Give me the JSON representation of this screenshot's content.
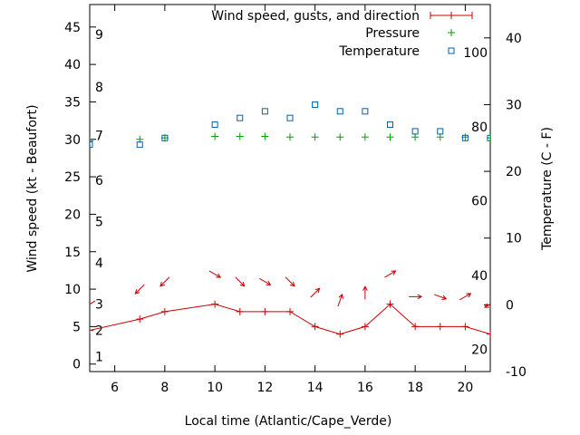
{
  "chart_data": {
    "type": "line",
    "xlabel": "Local time (Atlantic/Cape_Verde)",
    "ylabel_left": "Wind speed (kt - Beaufort)",
    "ylabel_right": "Temperature (C - F)",
    "xlim": [
      5,
      21
    ],
    "ylim_left": [
      -1,
      48
    ],
    "ylim_right": [
      -10,
      45
    ],
    "x_ticks": [
      6,
      8,
      10,
      12,
      14,
      16,
      18,
      20
    ],
    "y_ticks_left": [
      0,
      5,
      10,
      15,
      20,
      25,
      30,
      35,
      40,
      45
    ],
    "y_ticks_right": [
      -10,
      0,
      10,
      20,
      30,
      40
    ],
    "grid": false,
    "legend_position": "top-right",
    "beaufort_labels": [
      {
        "label": "1",
        "kt": 1
      },
      {
        "label": "2",
        "kt": 4.5
      },
      {
        "label": "3",
        "kt": 8
      },
      {
        "label": "4",
        "kt": 13.5
      },
      {
        "label": "5",
        "kt": 19
      },
      {
        "label": "6",
        "kt": 24.5
      },
      {
        "label": "7",
        "kt": 30.5
      },
      {
        "label": "8",
        "kt": 37
      },
      {
        "label": "9",
        "kt": 44
      }
    ],
    "fahrenheit_labels": [
      {
        "label": "20",
        "celsius": -6.7
      },
      {
        "label": "40",
        "celsius": 4.4
      },
      {
        "label": "60",
        "celsius": 15.6
      },
      {
        "label": "80",
        "celsius": 26.7
      },
      {
        "label": "100",
        "celsius": 37.8
      }
    ],
    "series": [
      {
        "name": "Wind speed, gusts, and direction",
        "color": "#cc0000",
        "marker": "plus",
        "x": [
          5,
          7,
          8,
          10,
          11,
          12,
          13,
          14,
          15,
          16,
          17,
          18,
          19,
          20,
          21
        ],
        "values": [
          4.5,
          6,
          7,
          8,
          7,
          7,
          7,
          5,
          4,
          5,
          8,
          5,
          5,
          5,
          4
        ],
        "direction_deg": [
          60,
          45,
          45,
          300,
          315,
          300,
          315,
          225,
          200,
          180,
          240,
          270,
          290,
          240,
          60
        ],
        "arrow_y": [
          8,
          10,
          11,
          12,
          11,
          11,
          11,
          9.5,
          8.5,
          9.5,
          12,
          9,
          9,
          9,
          8
        ]
      },
      {
        "name": "Pressure",
        "color": "#00a000",
        "marker": "plus",
        "x": [
          5,
          7,
          8,
          10,
          11,
          12,
          13,
          14,
          15,
          16,
          17,
          18,
          19,
          20,
          21
        ],
        "values": [
          29.8,
          30,
          30.2,
          30.4,
          30.4,
          30.4,
          30.3,
          30.3,
          30.3,
          30.3,
          30.3,
          30.3,
          30.3,
          30.3,
          30.2
        ]
      },
      {
        "name": "Temperature",
        "color": "#0060ad",
        "marker": "square",
        "axis": "right",
        "x": [
          5,
          7,
          8,
          10,
          11,
          12,
          13,
          14,
          15,
          16,
          17,
          18,
          19,
          20,
          21
        ],
        "values": [
          24,
          24,
          25,
          27,
          28,
          29,
          28,
          30,
          29,
          29,
          27,
          26,
          26,
          25,
          25
        ]
      }
    ]
  }
}
